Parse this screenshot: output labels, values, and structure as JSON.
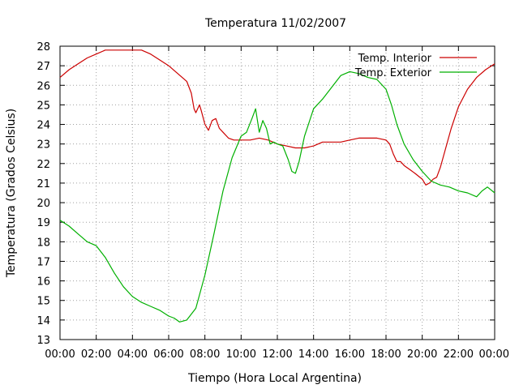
{
  "chart_data": {
    "type": "line",
    "title": "Temperatura 11/02/2007",
    "xlabel": "Tiempo (Hora Local Argentina)",
    "ylabel": "Temperatura (Grados Celsius)",
    "xlim": [
      0,
      24
    ],
    "ylim": [
      13,
      28
    ],
    "x_unit": "hours",
    "x_ticks": [
      0,
      2,
      4,
      6,
      8,
      10,
      12,
      14,
      16,
      18,
      20,
      22,
      24
    ],
    "x_tick_labels": [
      "00:00",
      "02:00",
      "04:00",
      "06:00",
      "08:00",
      "10:00",
      "12:00",
      "14:00",
      "16:00",
      "18:00",
      "20:00",
      "22:00",
      "00:00"
    ],
    "y_ticks": [
      13,
      14,
      15,
      16,
      17,
      18,
      19,
      20,
      21,
      22,
      23,
      24,
      25,
      26,
      27,
      28
    ],
    "grid": true,
    "legend_position": "top-right",
    "series": [
      {
        "name": "Temp. Interior",
        "color": "#cc0000",
        "x": [
          0,
          0.5,
          1,
          1.5,
          2,
          2.5,
          3,
          3.5,
          4,
          4.5,
          5,
          5.5,
          6,
          6.5,
          7,
          7.25,
          7.4,
          7.5,
          7.6,
          7.7,
          7.8,
          8,
          8.2,
          8.4,
          8.6,
          8.8,
          9,
          9.3,
          9.6,
          10,
          10.5,
          11,
          11.5,
          12,
          12.5,
          13,
          13.5,
          14,
          14.5,
          15,
          15.5,
          16,
          16.5,
          17,
          17.5,
          18,
          18.2,
          18.4,
          18.6,
          18.8,
          19,
          19.3,
          19.6,
          20,
          20.2,
          20.4,
          20.6,
          20.8,
          21,
          21.3,
          21.6,
          22,
          22.5,
          23,
          23.5,
          24
        ],
        "y": [
          26.4,
          26.8,
          27.1,
          27.4,
          27.6,
          27.8,
          27.8,
          27.8,
          27.8,
          27.8,
          27.6,
          27.3,
          27.0,
          26.6,
          26.2,
          25.6,
          24.8,
          24.6,
          24.8,
          25.0,
          24.7,
          24.0,
          23.7,
          24.2,
          24.3,
          23.8,
          23.6,
          23.3,
          23.2,
          23.2,
          23.2,
          23.3,
          23.2,
          23.0,
          22.9,
          22.8,
          22.8,
          22.9,
          23.1,
          23.1,
          23.1,
          23.2,
          23.3,
          23.3,
          23.3,
          23.2,
          23.0,
          22.5,
          22.1,
          22.1,
          21.9,
          21.7,
          21.5,
          21.2,
          20.9,
          21.0,
          21.2,
          21.3,
          21.8,
          22.8,
          23.8,
          24.9,
          25.8,
          26.4,
          26.8,
          27.1
        ]
      },
      {
        "name": "Temp. Exterior",
        "color": "#00b000",
        "x": [
          0,
          0.5,
          1,
          1.5,
          2,
          2.5,
          3,
          3.5,
          4,
          4.5,
          5,
          5.5,
          6,
          6.3,
          6.6,
          7,
          7.5,
          8,
          8.5,
          9,
          9.5,
          10,
          10.3,
          10.6,
          10.8,
          11,
          11.2,
          11.4,
          11.6,
          11.8,
          12,
          12.3,
          12.6,
          12.8,
          13,
          13.2,
          13.5,
          14,
          14.5,
          15,
          15.5,
          16,
          16.5,
          17,
          17.5,
          18,
          18.3,
          18.6,
          19,
          19.5,
          20,
          20.5,
          21,
          21.5,
          22,
          22.5,
          23,
          23.3,
          23.6,
          24
        ],
        "y": [
          19.1,
          18.8,
          18.4,
          18.0,
          17.8,
          17.2,
          16.4,
          15.7,
          15.2,
          14.9,
          14.7,
          14.5,
          14.2,
          14.1,
          13.9,
          14.0,
          14.6,
          16.3,
          18.4,
          20.6,
          22.3,
          23.4,
          23.6,
          24.3,
          24.8,
          23.6,
          24.2,
          23.8,
          23.0,
          23.1,
          23.0,
          22.9,
          22.2,
          21.6,
          21.5,
          22.1,
          23.4,
          24.8,
          25.3,
          25.9,
          26.5,
          26.7,
          26.6,
          26.4,
          26.3,
          25.8,
          25.0,
          24.0,
          23.0,
          22.2,
          21.6,
          21.1,
          20.9,
          20.8,
          20.6,
          20.5,
          20.3,
          20.6,
          20.8,
          20.5
        ]
      }
    ]
  }
}
